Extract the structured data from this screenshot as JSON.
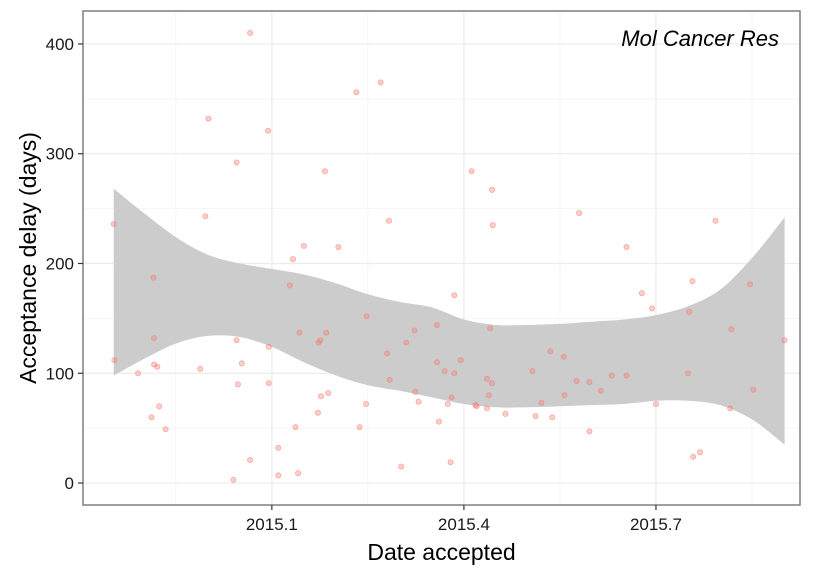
{
  "chart_data": {
    "type": "scatter",
    "title": "",
    "annotation": "Mol Cancer Res",
    "xlabel": "Date accepted",
    "ylabel": "Acceptance delay (days)",
    "xlim": [
      2014.805,
      2015.925
    ],
    "ylim": [
      -20,
      430
    ],
    "x_ticks": [
      2015.1,
      2015.4,
      2015.7
    ],
    "x_tick_labels": [
      "2015.1",
      "2015.4",
      "2015.7"
    ],
    "y_ticks": [
      0,
      100,
      200,
      300,
      400
    ],
    "y_tick_labels": [
      "0",
      "100",
      "200",
      "300",
      "400"
    ],
    "grid": true,
    "colors": {
      "points": "#f8766d",
      "smooth_band": "#cccccc",
      "grid": "#ebebeb",
      "border": "#7f7f7f"
    },
    "series": [
      {
        "points": [
          [
            2014.853,
            236
          ],
          [
            2014.854,
            112
          ],
          [
            2014.891,
            100
          ],
          [
            2014.912,
            60
          ],
          [
            2014.915,
            187
          ],
          [
            2014.916,
            132
          ],
          [
            2014.916,
            108
          ],
          [
            2014.921,
            106
          ],
          [
            2014.924,
            70
          ],
          [
            2014.934,
            49
          ],
          [
            2014.988,
            104
          ],
          [
            2014.996,
            243
          ],
          [
            2015.001,
            332
          ],
          [
            2015.04,
            3
          ],
          [
            2015.045,
            130
          ],
          [
            2015.045,
            292
          ],
          [
            2015.047,
            90
          ],
          [
            2015.053,
            109
          ],
          [
            2015.066,
            410
          ],
          [
            2015.066,
            21
          ],
          [
            2015.094,
            321
          ],
          [
            2015.095,
            91
          ],
          [
            2015.095,
            124
          ],
          [
            2015.11,
            32
          ],
          [
            2015.11,
            7
          ],
          [
            2015.128,
            180
          ],
          [
            2015.133,
            204
          ],
          [
            2015.137,
            51
          ],
          [
            2015.141,
            9
          ],
          [
            2015.143,
            137
          ],
          [
            2015.15,
            216
          ],
          [
            2015.172,
            64
          ],
          [
            2015.173,
            128
          ],
          [
            2015.176,
            130
          ],
          [
            2015.177,
            79
          ],
          [
            2015.183,
            284
          ],
          [
            2015.185,
            137
          ],
          [
            2015.188,
            82
          ],
          [
            2015.204,
            215
          ],
          [
            2015.232,
            356
          ],
          [
            2015.237,
            51
          ],
          [
            2015.247,
            72
          ],
          [
            2015.248,
            152
          ],
          [
            2015.27,
            365
          ],
          [
            2015.28,
            118
          ],
          [
            2015.283,
            239
          ],
          [
            2015.284,
            94
          ],
          [
            2015.302,
            15
          ],
          [
            2015.31,
            128
          ],
          [
            2015.323,
            139
          ],
          [
            2015.324,
            83
          ],
          [
            2015.329,
            74
          ],
          [
            2015.358,
            144
          ],
          [
            2015.358,
            110
          ],
          [
            2015.361,
            56
          ],
          [
            2015.37,
            102
          ],
          [
            2015.375,
            72
          ],
          [
            2015.379,
            19
          ],
          [
            2015.381,
            78
          ],
          [
            2015.385,
            100
          ],
          [
            2015.385,
            171
          ],
          [
            2015.395,
            112
          ],
          [
            2015.412,
            284
          ],
          [
            2015.418,
            71
          ],
          [
            2015.42,
            70
          ],
          [
            2015.436,
            95
          ],
          [
            2015.436,
            68
          ],
          [
            2015.439,
            80
          ],
          [
            2015.441,
            141
          ],
          [
            2015.444,
            91
          ],
          [
            2015.444,
            267
          ],
          [
            2015.445,
            235
          ],
          [
            2015.465,
            63
          ],
          [
            2015.507,
            102
          ],
          [
            2015.512,
            61
          ],
          [
            2015.521,
            73
          ],
          [
            2015.535,
            120
          ],
          [
            2015.538,
            60
          ],
          [
            2015.556,
            115
          ],
          [
            2015.557,
            80
          ],
          [
            2015.576,
            93
          ],
          [
            2015.58,
            246
          ],
          [
            2015.596,
            92
          ],
          [
            2015.596,
            47
          ],
          [
            2015.614,
            84
          ],
          [
            2015.631,
            98
          ],
          [
            2015.654,
            98
          ],
          [
            2015.654,
            215
          ],
          [
            2015.678,
            173
          ],
          [
            2015.694,
            159
          ],
          [
            2015.7,
            72
          ],
          [
            2015.75,
            100
          ],
          [
            2015.752,
            156
          ],
          [
            2015.757,
            184
          ],
          [
            2015.758,
            24
          ],
          [
            2015.769,
            28
          ],
          [
            2015.793,
            239
          ],
          [
            2015.816,
            68
          ],
          [
            2015.818,
            140
          ],
          [
            2015.847,
            181
          ],
          [
            2015.852,
            85
          ],
          [
            2015.901,
            130
          ]
        ]
      }
    ],
    "smooth_band": {
      "x": [
        2014.853,
        2014.9,
        2014.95,
        2015.0,
        2015.05,
        2015.1,
        2015.15,
        2015.2,
        2015.25,
        2015.3,
        2015.35,
        2015.4,
        2015.45,
        2015.5,
        2015.55,
        2015.6,
        2015.65,
        2015.7,
        2015.75,
        2015.8,
        2015.85,
        2015.901
      ],
      "upper": [
        268,
        246,
        224,
        208,
        200,
        195,
        190,
        182,
        172,
        165,
        160,
        149,
        144,
        144,
        145,
        147,
        149,
        153,
        161,
        176,
        205,
        242
      ],
      "lower": [
        98,
        113,
        127,
        134,
        133,
        124,
        110,
        98,
        89,
        84,
        78,
        72,
        69,
        69,
        70,
        71,
        72,
        75,
        75,
        71,
        58,
        35
      ]
    }
  }
}
